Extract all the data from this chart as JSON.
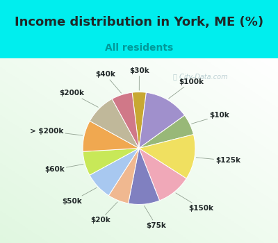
{
  "title": "Income distribution in York, ME (%)",
  "subtitle": "All residents",
  "watermark": "Ⓜ City-Data.com",
  "labels": [
    "$30k",
    "$100k",
    "$10k",
    "$125k",
    "$150k",
    "$75k",
    "$20k",
    "$50k",
    "$60k",
    "> $200k",
    "$200k",
    "$40k"
  ],
  "sizes": [
    4,
    13,
    6,
    13,
    10,
    9,
    6,
    8,
    7,
    9,
    9,
    6
  ],
  "colors": [
    "#c8a832",
    "#a090cc",
    "#98b878",
    "#f0e060",
    "#f0a8b8",
    "#8080c0",
    "#f0b890",
    "#a8c8f0",
    "#c8e858",
    "#f0a850",
    "#c0b89a",
    "#d07888"
  ],
  "top_bg": "#00eeee",
  "chart_bg_left": "#e8fae8",
  "chart_bg_right": "#f8fffe",
  "title_color": "#202828",
  "subtitle_color": "#009999",
  "label_color": "#202828",
  "label_fontsize": 7.5,
  "title_fontsize": 13,
  "subtitle_fontsize": 10
}
